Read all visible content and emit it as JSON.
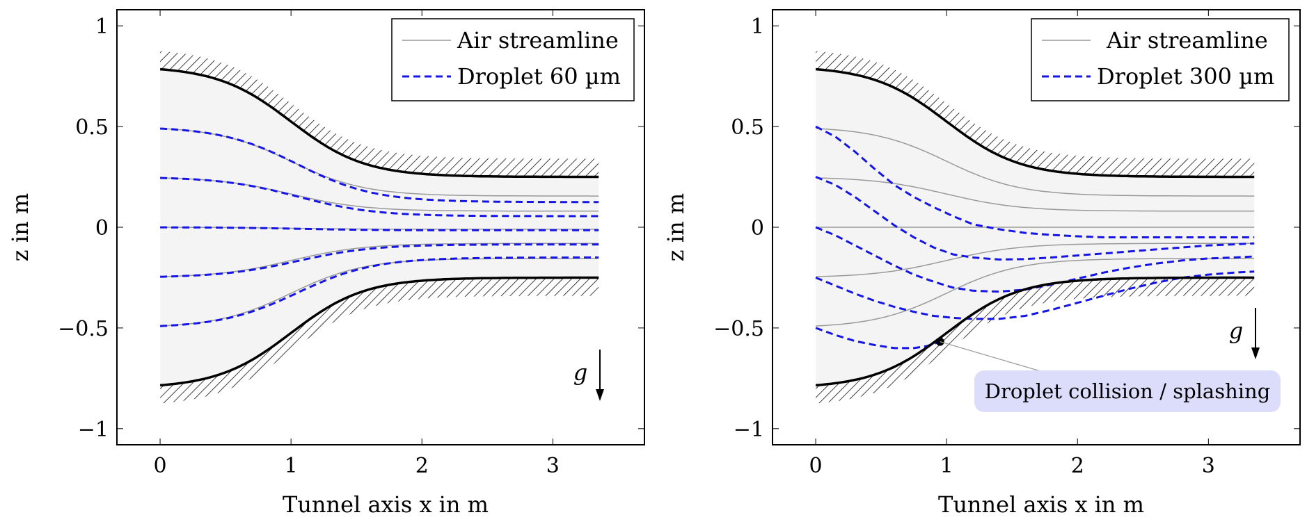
{
  "chart_data": [
    {
      "type": "line",
      "xlabel": "Tunnel axis x in m",
      "ylabel": "z in m",
      "xlim": [
        -0.33,
        3.7
      ],
      "ylim": [
        -1.08,
        1.08
      ],
      "x_ticks": [
        0,
        1,
        2,
        3
      ],
      "x_tick_labels": [
        "0",
        "1",
        "2",
        "3"
      ],
      "y_ticks": [
        -1,
        -0.5,
        0,
        0.5,
        1
      ],
      "y_tick_labels": [
        "−1",
        "−0.5",
        "0",
        "0.5",
        "1"
      ],
      "grid": false,
      "legend_position": "top-right",
      "legend": [
        {
          "label": "Air streamline",
          "style": "thin-gray"
        },
        {
          "label": "Droplet 60 µm",
          "style": "blue-dashed"
        }
      ],
      "walls": {
        "x_start": 0,
        "x_end": 3.35,
        "center_x": 1.0,
        "transition_width": 1.35,
        "upper": {
          "start": 0.8,
          "end": 0.25
        },
        "lower": {
          "start": -0.8,
          "end": -0.25
        }
      },
      "gravity_label": "g",
      "series": [
        {
          "kind": "streamline",
          "start": 0.5,
          "end": 0.155
        },
        {
          "kind": "streamline",
          "start": 0.25,
          "end": 0.08
        },
        {
          "kind": "streamline",
          "start": 0.0,
          "end": -0.01
        },
        {
          "kind": "streamline",
          "start": -0.25,
          "end": -0.08
        },
        {
          "kind": "streamline",
          "start": -0.5,
          "end": -0.155
        },
        {
          "kind": "droplet",
          "start": 0.5,
          "end": 0.125,
          "center_x": 1.05,
          "transition_width": 1.4
        },
        {
          "kind": "droplet",
          "start": 0.25,
          "end": 0.055,
          "center_x": 1.05,
          "transition_width": 1.4
        },
        {
          "kind": "droplet",
          "start": 0.0,
          "end": -0.015,
          "center_x": 1.05,
          "transition_width": 1.4
        },
        {
          "kind": "droplet",
          "start": -0.25,
          "end": -0.085,
          "center_x": 1.05,
          "transition_width": 1.4
        },
        {
          "kind": "droplet",
          "start": -0.5,
          "end": -0.15,
          "center_x": 1.05,
          "transition_width": 1.4
        }
      ]
    },
    {
      "type": "line",
      "xlabel": "Tunnel axis x in m",
      "ylabel": "z in m",
      "xlim": [
        -0.33,
        3.7
      ],
      "ylim": [
        -1.08,
        1.08
      ],
      "x_ticks": [
        0,
        1,
        2,
        3
      ],
      "x_tick_labels": [
        "0",
        "1",
        "2",
        "3"
      ],
      "y_ticks": [
        -1,
        -0.5,
        0,
        0.5,
        1
      ],
      "y_tick_labels": [
        "−1",
        "−0.5",
        "0",
        "0.5",
        "1"
      ],
      "grid": false,
      "legend_position": "top-right",
      "legend": [
        {
          "label": "Air streamline",
          "style": "thin-gray"
        },
        {
          "label": "Droplet 300 µm",
          "style": "blue-dashed"
        }
      ],
      "walls": {
        "x_start": 0,
        "x_end": 3.35,
        "center_x": 1.0,
        "transition_width": 1.35,
        "upper": {
          "start": 0.8,
          "end": 0.25
        },
        "lower": {
          "start": -0.8,
          "end": -0.25
        }
      },
      "gravity_label": "g",
      "annotation": {
        "text": "Droplet collision / splashing",
        "point": [
          0.95,
          -0.568
        ]
      },
      "series": [
        {
          "kind": "streamline",
          "start": 0.5,
          "end": 0.155
        },
        {
          "kind": "streamline",
          "start": 0.25,
          "end": 0.08
        },
        {
          "kind": "streamline",
          "start": 0.0,
          "end": 0.0
        },
        {
          "kind": "streamline",
          "start": -0.25,
          "end": -0.08
        },
        {
          "kind": "streamline",
          "start": -0.5,
          "end": -0.155
        },
        {
          "kind": "droplet",
          "points": [
            [
              0,
              0.5
            ],
            [
              0.15,
              0.45
            ],
            [
              0.3,
              0.375
            ],
            [
              0.45,
              0.29
            ],
            [
              0.6,
              0.21
            ],
            [
              0.75,
              0.15
            ],
            [
              0.9,
              0.1
            ],
            [
              1.05,
              0.055
            ],
            [
              1.2,
              0.015
            ],
            [
              1.4,
              -0.01
            ],
            [
              1.6,
              -0.028
            ],
            [
              1.8,
              -0.038
            ],
            [
              2.0,
              -0.045
            ],
            [
              2.2,
              -0.05
            ],
            [
              2.4,
              -0.05
            ],
            [
              2.6,
              -0.05
            ],
            [
              2.8,
              -0.05
            ],
            [
              3.0,
              -0.05
            ],
            [
              3.2,
              -0.05
            ],
            [
              3.35,
              -0.05
            ]
          ]
        },
        {
          "kind": "droplet",
          "points": [
            [
              0,
              0.25
            ],
            [
              0.15,
              0.21
            ],
            [
              0.3,
              0.15
            ],
            [
              0.45,
              0.08
            ],
            [
              0.6,
              0.01
            ],
            [
              0.75,
              -0.05
            ],
            [
              0.9,
              -0.1
            ],
            [
              1.05,
              -0.135
            ],
            [
              1.2,
              -0.15
            ],
            [
              1.4,
              -0.16
            ],
            [
              1.6,
              -0.158
            ],
            [
              1.8,
              -0.15
            ],
            [
              2.0,
              -0.14
            ],
            [
              2.2,
              -0.13
            ],
            [
              2.4,
              -0.12
            ],
            [
              2.6,
              -0.11
            ],
            [
              2.8,
              -0.1
            ],
            [
              3.0,
              -0.09
            ],
            [
              3.2,
              -0.085
            ],
            [
              3.35,
              -0.08
            ]
          ]
        },
        {
          "kind": "droplet",
          "points": [
            [
              0,
              0.0
            ],
            [
              0.15,
              -0.04
            ],
            [
              0.3,
              -0.09
            ],
            [
              0.45,
              -0.14
            ],
            [
              0.6,
              -0.19
            ],
            [
              0.75,
              -0.235
            ],
            [
              0.9,
              -0.27
            ],
            [
              1.05,
              -0.3
            ],
            [
              1.2,
              -0.315
            ],
            [
              1.4,
              -0.32
            ],
            [
              1.6,
              -0.31
            ],
            [
              1.8,
              -0.285
            ],
            [
              2.0,
              -0.255
            ],
            [
              2.2,
              -0.225
            ],
            [
              2.4,
              -0.2
            ],
            [
              2.6,
              -0.18
            ],
            [
              2.8,
              -0.165
            ],
            [
              3.0,
              -0.155
            ],
            [
              3.2,
              -0.15
            ],
            [
              3.35,
              -0.145
            ]
          ]
        },
        {
          "kind": "droplet",
          "points": [
            [
              0,
              -0.25
            ],
            [
              0.15,
              -0.29
            ],
            [
              0.3,
              -0.33
            ],
            [
              0.45,
              -0.365
            ],
            [
              0.6,
              -0.395
            ],
            [
              0.75,
              -0.42
            ],
            [
              0.9,
              -0.44
            ],
            [
              1.05,
              -0.45
            ],
            [
              1.2,
              -0.455
            ],
            [
              1.4,
              -0.455
            ],
            [
              1.6,
              -0.44
            ],
            [
              1.8,
              -0.41
            ],
            [
              2.0,
              -0.375
            ],
            [
              2.2,
              -0.34
            ],
            [
              2.4,
              -0.305
            ],
            [
              2.6,
              -0.275
            ],
            [
              2.8,
              -0.25
            ],
            [
              3.0,
              -0.235
            ],
            [
              3.2,
              -0.225
            ],
            [
              3.35,
              -0.22
            ]
          ]
        },
        {
          "kind": "droplet",
          "points": [
            [
              0,
              -0.5
            ],
            [
              0.15,
              -0.535
            ],
            [
              0.3,
              -0.565
            ],
            [
              0.45,
              -0.585
            ],
            [
              0.6,
              -0.6
            ],
            [
              0.75,
              -0.6
            ],
            [
              0.85,
              -0.59
            ],
            [
              0.95,
              -0.568
            ]
          ]
        }
      ]
    }
  ]
}
